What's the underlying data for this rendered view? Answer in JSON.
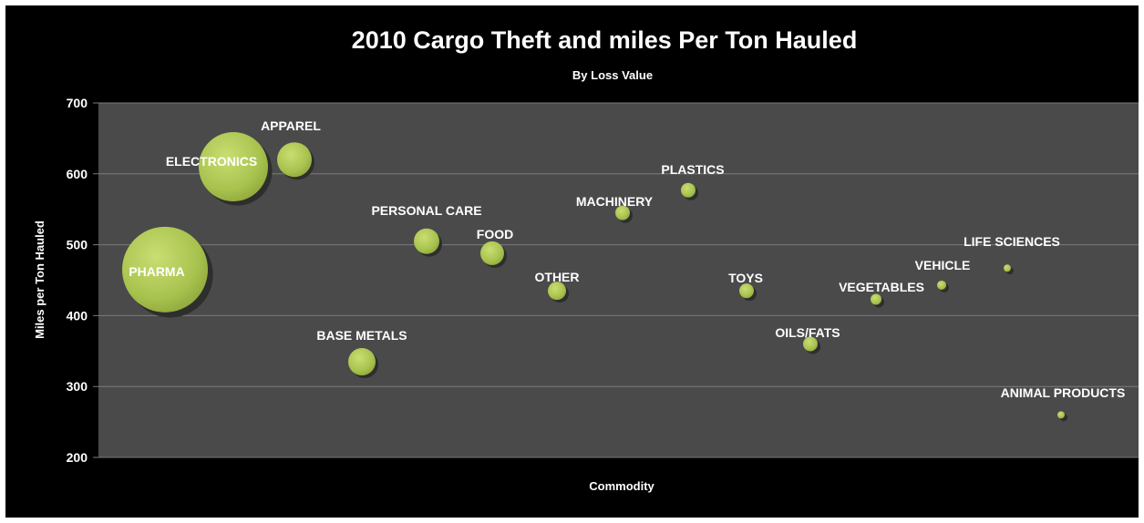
{
  "chart_data": {
    "type": "bubble",
    "title": "2010 Cargo Theft and miles Per Ton Hauled",
    "subtitle": "By Loss Value",
    "xlabel": "Commodity",
    "ylabel": "Miles per Ton Hauled",
    "ylim": [
      200,
      700
    ],
    "yticks": [
      "700",
      "600",
      "500",
      "400",
      "300",
      "200"
    ],
    "grid": true,
    "colors": {
      "background": "#000000",
      "plot_area": "#4a4a4a",
      "gridline": "#7a7a7a",
      "bubble": "#b3cc5a",
      "bubble_shadow": "#2e2e2e",
      "text": "#ffffff"
    },
    "points": [
      {
        "label": "PHARMA",
        "y": 465
      },
      {
        "label": "ELECTRONICS",
        "y": 610
      },
      {
        "label": "APPAREL",
        "y": 620
      },
      {
        "label": "BASE METALS",
        "y": 335
      },
      {
        "label": "PERSONAL CARE",
        "y": 505
      },
      {
        "label": "FOOD",
        "y": 488
      },
      {
        "label": "OTHER",
        "y": 435
      },
      {
        "label": "MACHINERY",
        "y": 545
      },
      {
        "label": "PLASTICS",
        "y": 577
      },
      {
        "label": "TOYS",
        "y": 435
      },
      {
        "label": "OILS/FATS",
        "y": 360
      },
      {
        "label": "VEGETABLES",
        "y": 423
      },
      {
        "label": "VEHICLE",
        "y": 443
      },
      {
        "label": "LIFE SCIENCES",
        "y": 467
      },
      {
        "label": "ANIMAL PRODUCTS",
        "y": 260
      }
    ]
  }
}
